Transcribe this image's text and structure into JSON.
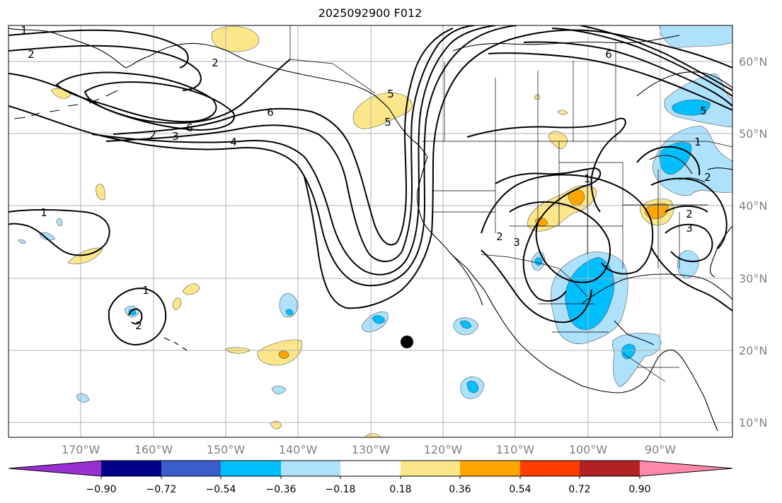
{
  "map": {
    "title": "2025092900 F012",
    "lat_labels": [
      "60°N",
      "50°N",
      "40°N",
      "30°N",
      "20°N",
      "10°N"
    ],
    "lon_labels": [
      "170°W",
      "160°W",
      "150°W",
      "140°W",
      "130°W",
      "120°W",
      "110°W",
      "100°W",
      "90°W"
    ],
    "contour_labels": [
      "1",
      "2",
      "2",
      "3",
      "6",
      "4",
      "6",
      "5",
      "5",
      "6",
      "5",
      "1",
      "2",
      "3",
      "2",
      "1",
      "2",
      "3",
      "1",
      "2",
      "1",
      "2"
    ],
    "marker": "filled black dot near 21°N 125°W",
    "colors": {
      "neg_strong": "#00bfff",
      "neg_weak": "#aee1fb",
      "pos_weak": "#fbe78a",
      "pos_strong": "#ffa500",
      "grid": "#b0b0b0"
    }
  },
  "colorbar": {
    "ticks": [
      "−0.90",
      "−0.72",
      "−0.54",
      "−0.36",
      "−0.18",
      "0.18",
      "0.36",
      "0.54",
      "0.72",
      "0.90"
    ],
    "colors": [
      "#9b30d0",
      "#00008b",
      "#3a5fcd",
      "#00bfff",
      "#aee1fb",
      "#ffffff",
      "#fbe78a",
      "#ffa500",
      "#ff3d00",
      "#b22222",
      "#ff88aa"
    ]
  }
}
